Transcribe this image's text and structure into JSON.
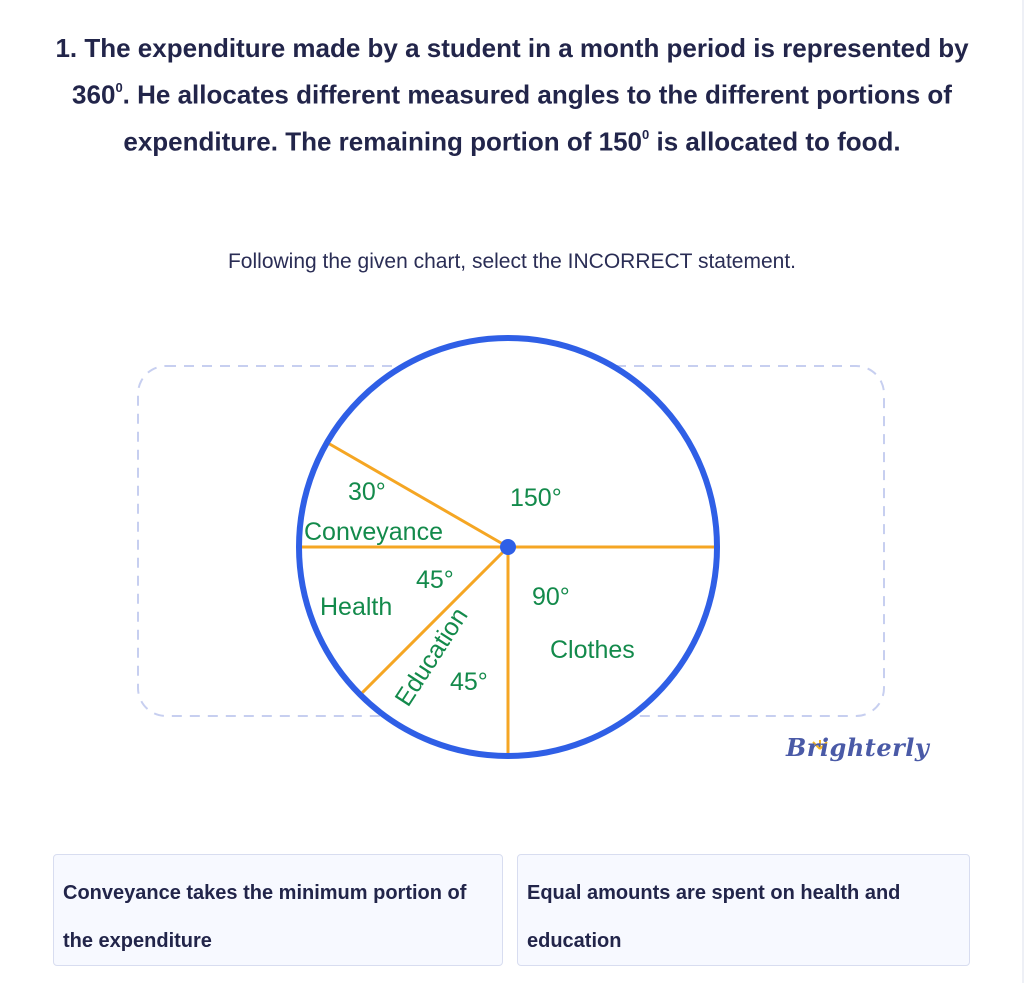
{
  "question": {
    "number": "1.",
    "text_part1": "The expenditure made by a student in a month period is represented by 360",
    "degree_mark": "0",
    "text_part2": ". He allocates different measured angles to the different portions of expenditure. The remaining portion of 150",
    "text_part3": " is allocated to food."
  },
  "instruction": "Following the given chart, select the INCORRECT statement.",
  "chart": {
    "labels": {
      "conveyance_angle": "30°",
      "conveyance_name": "Conveyance",
      "food_angle": "150°",
      "health_angle": "45°",
      "health_name": "Health",
      "education_name": "Education",
      "education_angle": "45°",
      "clothes_angle": "90°",
      "clothes_name": "Clothes"
    },
    "colors": {
      "circle": "#2f5fe6",
      "radius_lines": "#f5a623",
      "labels": "#138a4b",
      "center_dot": "#2f5fe6",
      "dashed_frame": "#c7cff0"
    }
  },
  "chart_data": {
    "type": "pie",
    "slices": [
      {
        "label": "150°",
        "value": 150
      },
      {
        "label": "Clothes",
        "value": 90
      },
      {
        "label": "Education",
        "value": 45
      },
      {
        "label": "Health",
        "value": 45
      },
      {
        "label": "Conveyance",
        "value": 30
      }
    ]
  },
  "brand": "Brighterly",
  "options": [
    {
      "text": "Conveyance takes the minimum portion of the expenditure"
    },
    {
      "text": "Equal amounts are spent on health and education"
    }
  ]
}
